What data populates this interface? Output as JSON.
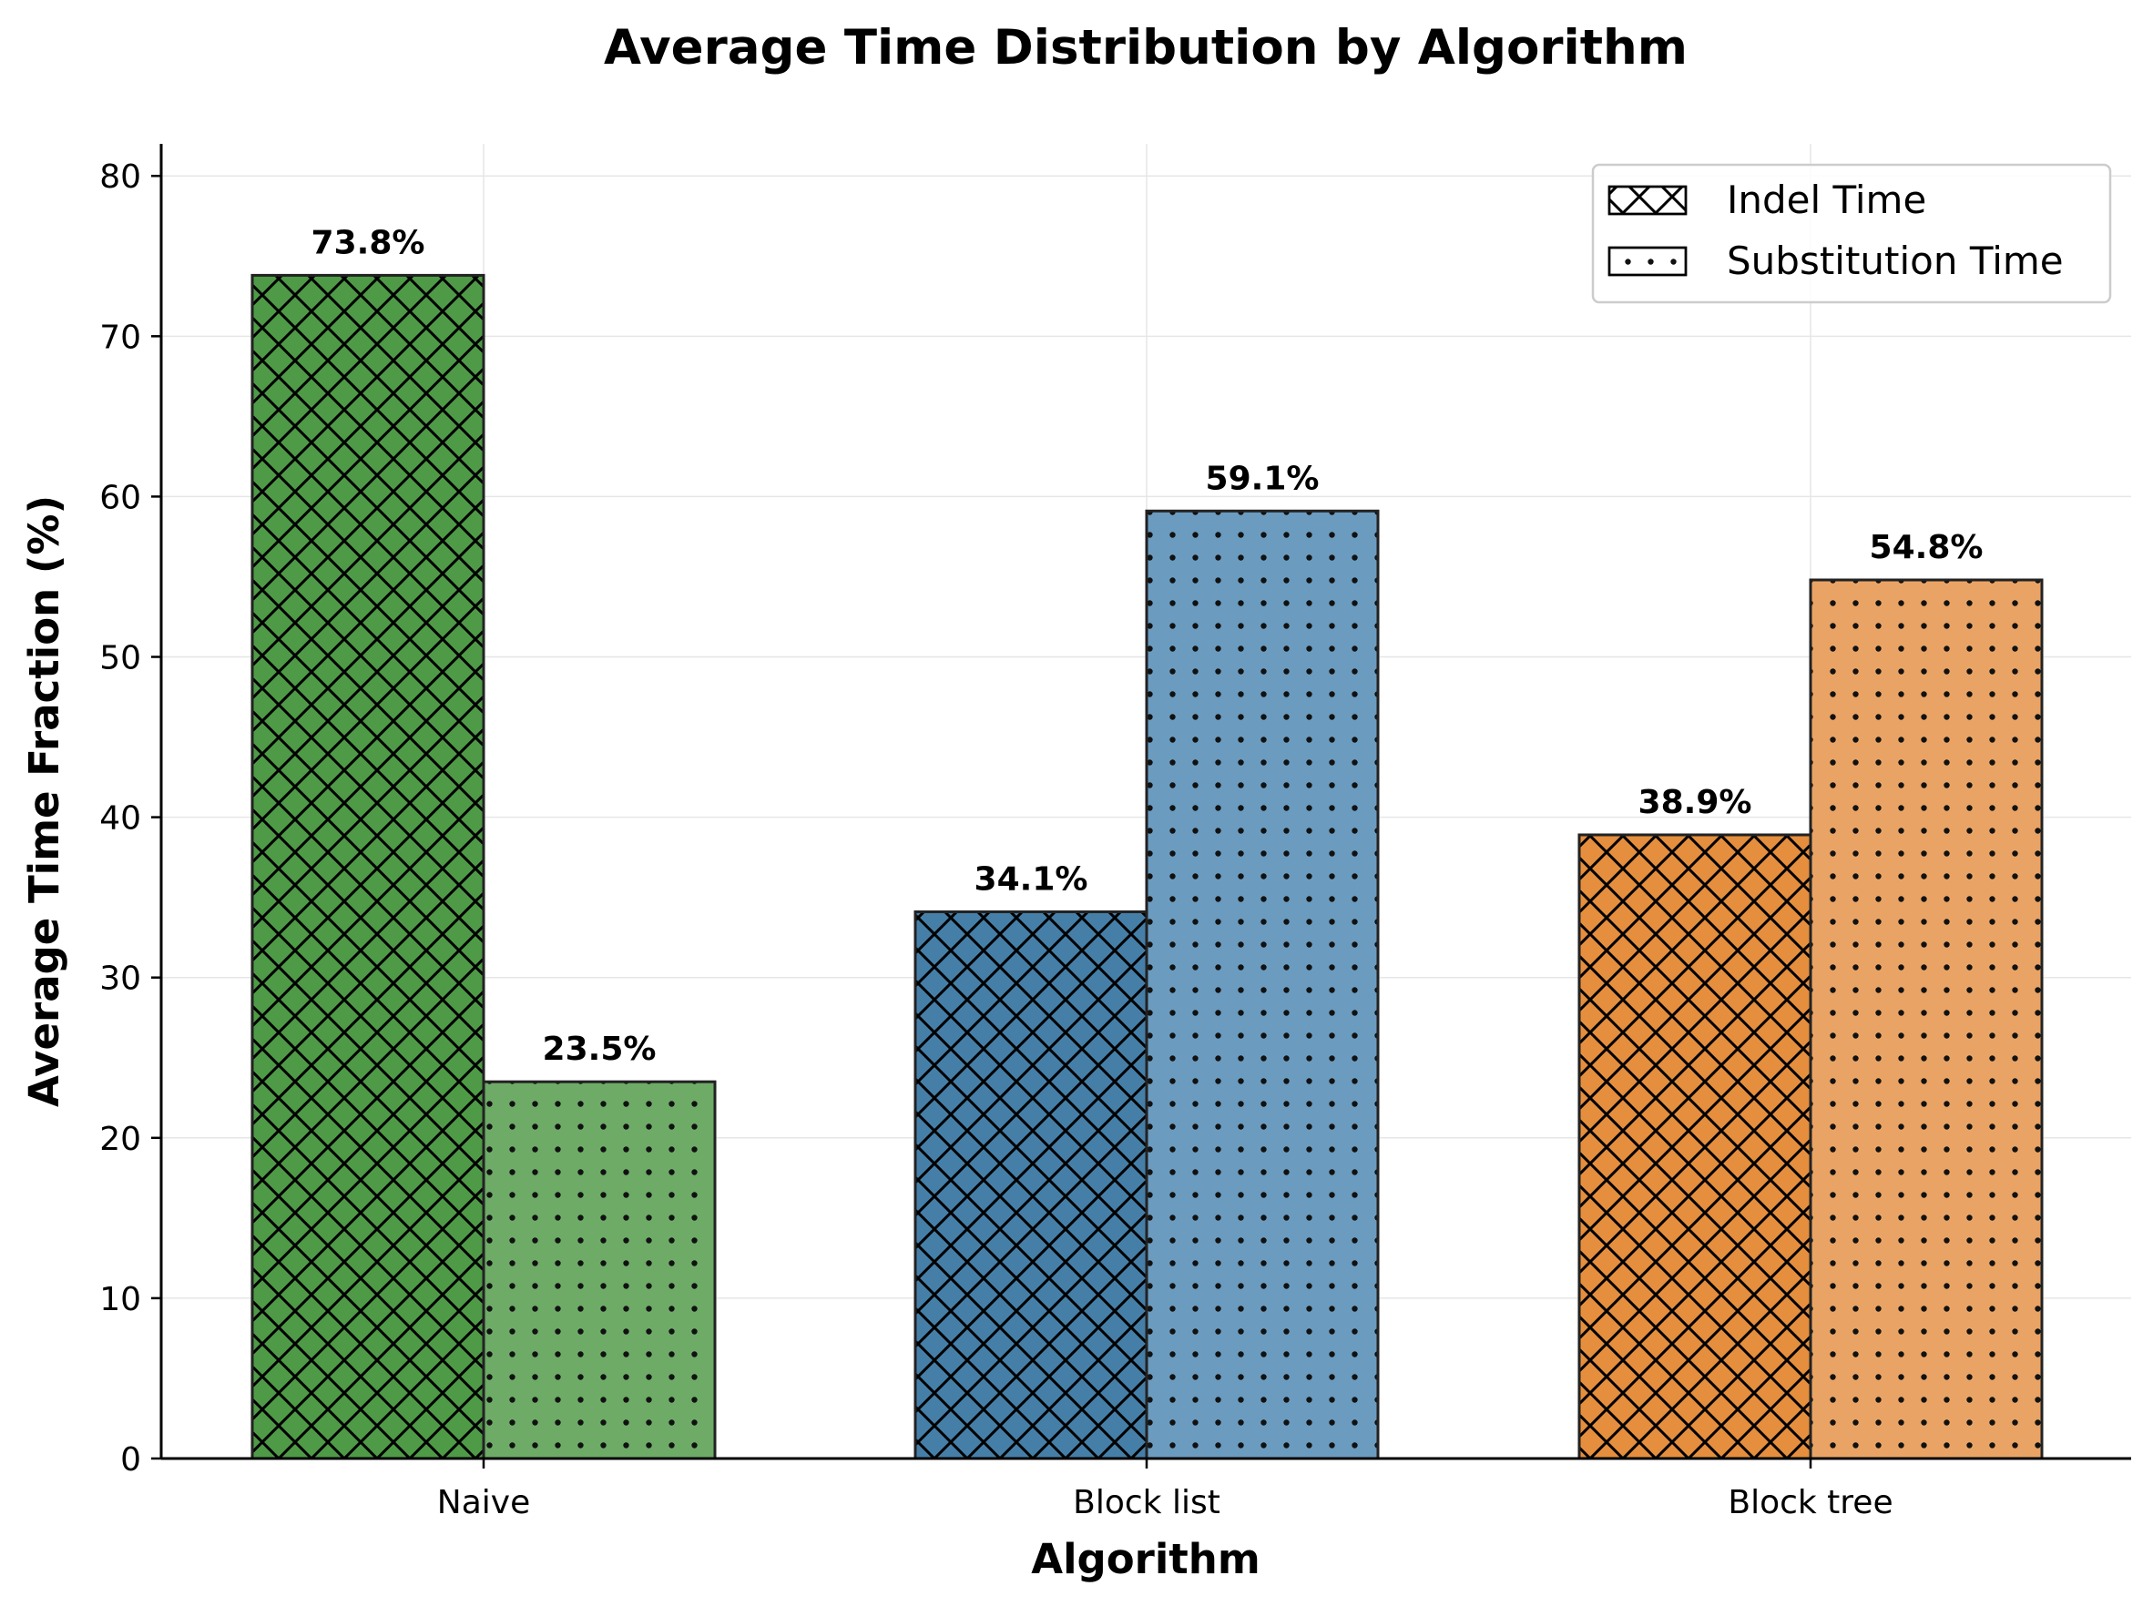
{
  "chart_data": {
    "type": "bar",
    "title": "Average Time Distribution by Algorithm",
    "xlabel": "Algorithm",
    "ylabel": "Average Time Fraction (%)",
    "categories": [
      "Naive",
      "Block list",
      "Block tree"
    ],
    "series": [
      {
        "name": "Indel Time",
        "values": [
          73.8,
          34.1,
          38.9
        ],
        "labels": [
          "73.8%",
          "34.1%",
          "38.9%"
        ],
        "hatch": "crosshatch"
      },
      {
        "name": "Substitution Time",
        "values": [
          23.5,
          59.1,
          54.8
        ],
        "labels": [
          "23.5%",
          "59.1%",
          "54.8%"
        ],
        "hatch": "dots"
      }
    ],
    "category_colors": [
      {
        "indel": "#4e9a47",
        "substitution": "#6dab67"
      },
      {
        "indel": "#457fa8",
        "substitution": "#6b9bbf"
      },
      {
        "indel": "#e48e3e",
        "substitution": "#e9a465"
      }
    ],
    "ylim": [
      0,
      82
    ],
    "yticks": [
      0,
      10,
      20,
      30,
      40,
      50,
      60,
      70,
      80
    ],
    "grid": true,
    "legend_position": "top-right"
  }
}
